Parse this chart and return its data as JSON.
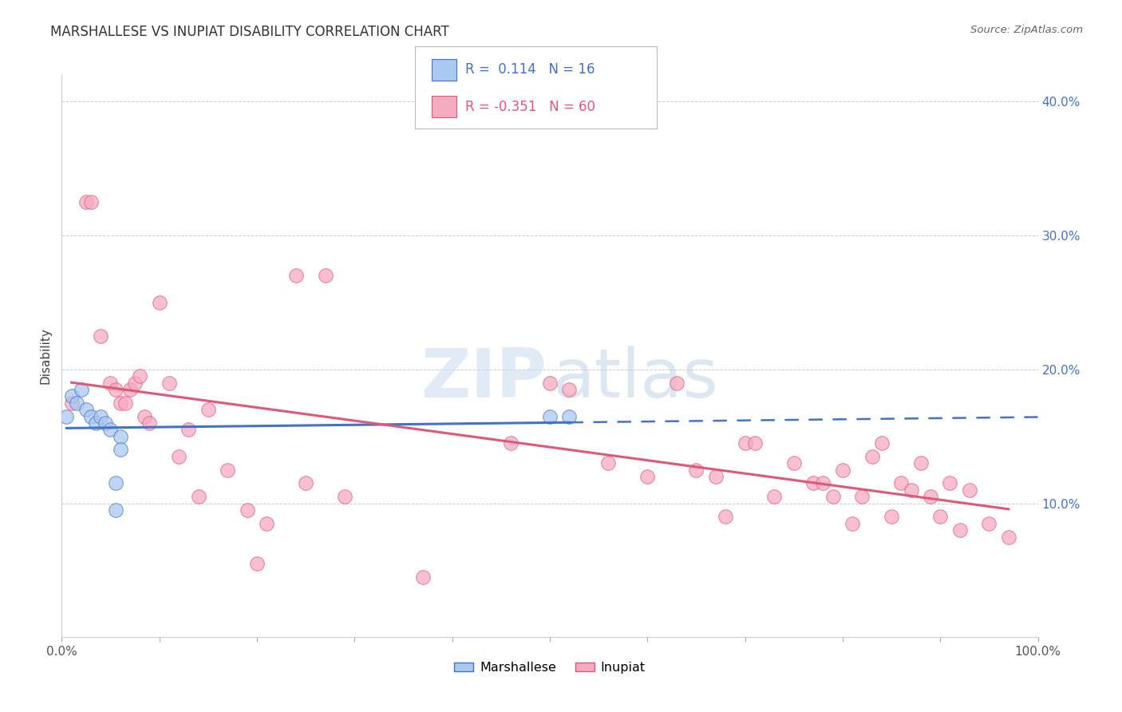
{
  "title": "MARSHALLESE VS INUPIAT DISABILITY CORRELATION CHART",
  "source": "Source: ZipAtlas.com",
  "ylabel": "Disability",
  "marshallese_R": 0.114,
  "marshallese_N": 16,
  "inupiat_R": -0.351,
  "inupiat_N": 60,
  "marshallese_x": [
    0.5,
    1.0,
    1.5,
    2.0,
    2.5,
    3.0,
    3.5,
    4.0,
    4.5,
    5.0,
    5.5,
    5.5,
    6.0,
    6.0,
    50.0,
    52.0
  ],
  "marshallese_y": [
    16.5,
    18.0,
    17.5,
    18.5,
    17.0,
    16.5,
    16.0,
    16.5,
    16.0,
    15.5,
    9.5,
    11.5,
    15.0,
    14.0,
    16.5,
    16.5
  ],
  "inupiat_x": [
    1.0,
    2.5,
    3.0,
    4.0,
    5.0,
    5.5,
    6.0,
    6.5,
    7.0,
    7.5,
    8.0,
    8.5,
    9.0,
    10.0,
    11.0,
    12.0,
    13.0,
    14.0,
    15.0,
    17.0,
    19.0,
    20.0,
    21.0,
    24.0,
    25.0,
    27.0,
    29.0,
    37.0,
    46.0,
    50.0,
    52.0,
    56.0,
    60.0,
    63.0,
    65.0,
    67.0,
    68.0,
    70.0,
    71.0,
    73.0,
    75.0,
    77.0,
    78.0,
    79.0,
    80.0,
    81.0,
    82.0,
    83.0,
    84.0,
    85.0,
    86.0,
    87.0,
    88.0,
    89.0,
    90.0,
    91.0,
    92.0,
    93.0,
    95.0,
    97.0
  ],
  "inupiat_y": [
    17.5,
    32.5,
    32.5,
    22.5,
    19.0,
    18.5,
    17.5,
    17.5,
    18.5,
    19.0,
    19.5,
    16.5,
    16.0,
    25.0,
    19.0,
    13.5,
    15.5,
    10.5,
    17.0,
    12.5,
    9.5,
    5.5,
    8.5,
    27.0,
    11.5,
    27.0,
    10.5,
    4.5,
    14.5,
    19.0,
    18.5,
    13.0,
    12.0,
    19.0,
    12.5,
    12.0,
    9.0,
    14.5,
    14.5,
    10.5,
    13.0,
    11.5,
    11.5,
    10.5,
    12.5,
    8.5,
    10.5,
    13.5,
    14.5,
    9.0,
    11.5,
    11.0,
    13.0,
    10.5,
    9.0,
    11.5,
    8.0,
    11.0,
    8.5,
    7.5
  ],
  "blue_color": "#A8C8F0",
  "pink_color": "#F5AABF",
  "blue_line_color": "#4472C4",
  "pink_line_color": "#E05878",
  "background_color": "#FFFFFF",
  "grid_color": "#CCCCCC",
  "xlim": [
    0,
    100
  ],
  "ylim": [
    0,
    42
  ],
  "yticks": [
    10,
    20,
    30,
    40
  ],
  "ytick_labels": [
    "10.0%",
    "20.0%",
    "30.0%",
    "40.0%"
  ]
}
